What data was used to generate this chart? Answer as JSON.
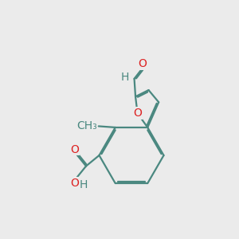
{
  "bg_color": "#ebebeb",
  "bond_color": "#4a8880",
  "oxygen_color": "#dd2222",
  "h_color": "#4a8880",
  "line_width": 1.6,
  "dbo": 0.055,
  "font_size": 10,
  "xlim": [
    0,
    10
  ],
  "ylim": [
    0,
    10
  ]
}
